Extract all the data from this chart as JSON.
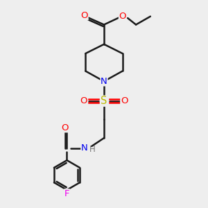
{
  "bg_color": "#eeeeee",
  "bond_color": "#1a1a1a",
  "bond_width": 1.8,
  "atom_colors": {
    "O": "#ff0000",
    "N": "#0000ee",
    "S": "#bbbb00",
    "F": "#ee00ee",
    "C": "#1a1a1a",
    "H": "#777777"
  },
  "font_size": 9.5,
  "figsize": [
    3.0,
    3.0
  ],
  "dpi": 100
}
